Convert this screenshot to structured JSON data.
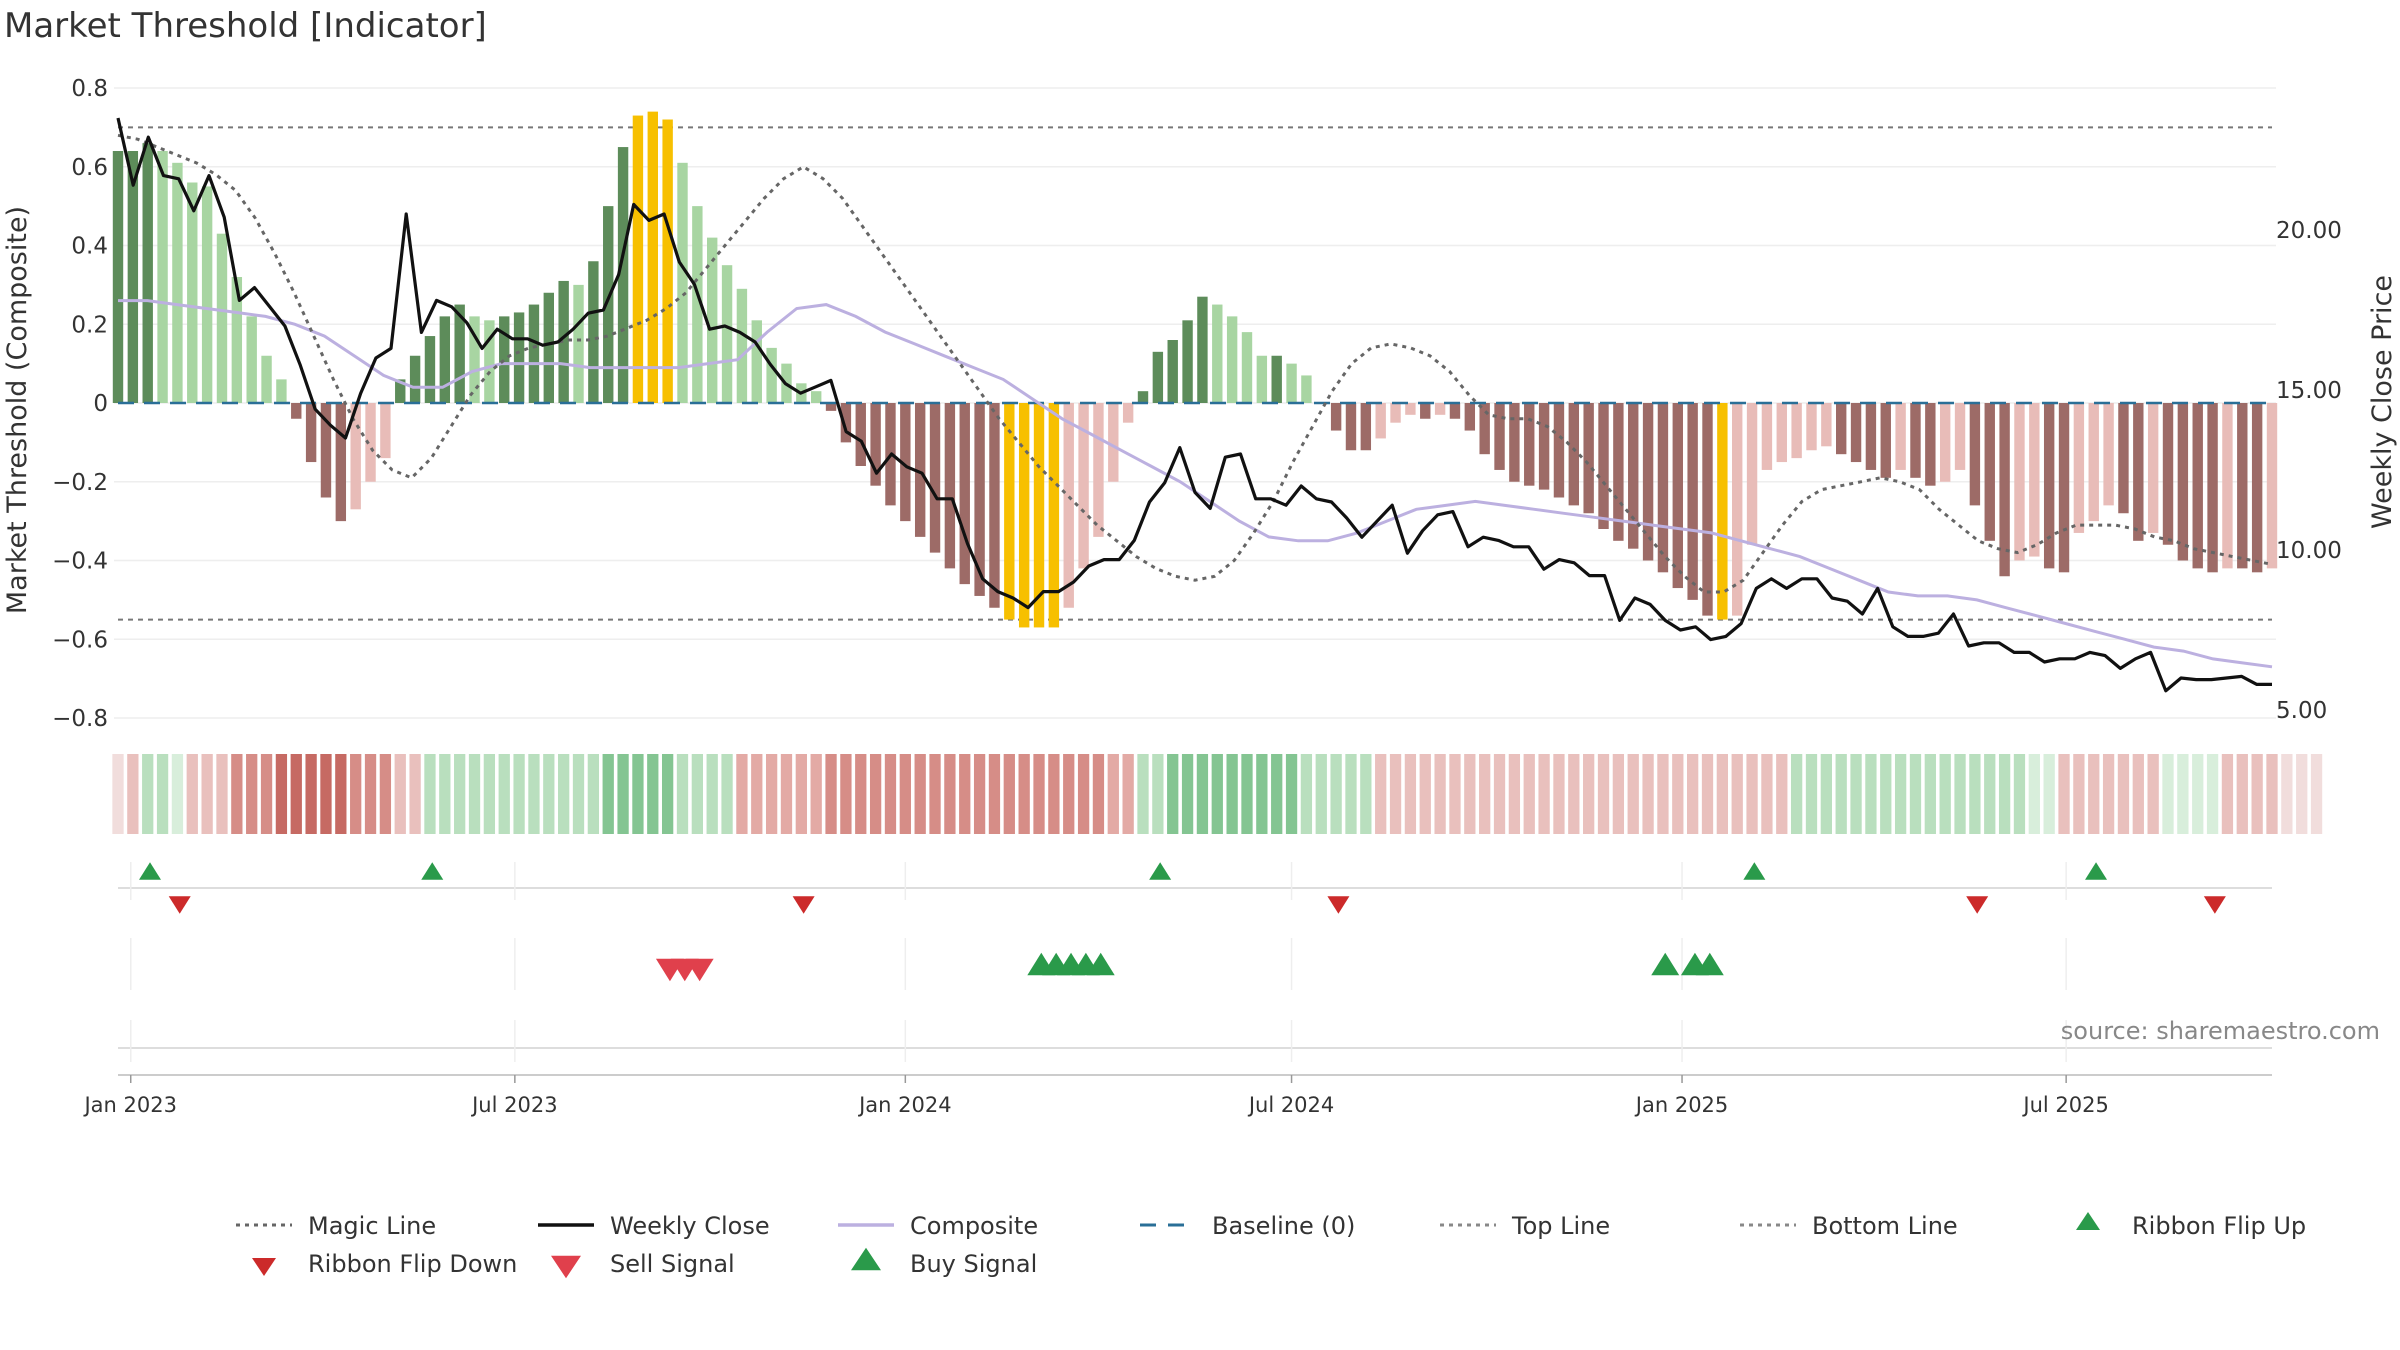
{
  "chart_data": {
    "type": "bar",
    "title": "Market Threshold [Indicator]",
    "ylabel_left": "Market Threshold (Composite)",
    "ylabel_right": "Weekly Close Price",
    "source": "source: sharemaestro.com",
    "x_start": "2022-12-26",
    "x_end": "2025-10-06",
    "x_ticks": [
      {
        "date": "2023-01-01",
        "label": "Jan 2023"
      },
      {
        "date": "2023-07-01",
        "label": "Jul 2023"
      },
      {
        "date": "2024-01-01",
        "label": "Jan 2024"
      },
      {
        "date": "2024-07-01",
        "label": "Jul 2024"
      },
      {
        "date": "2025-01-01",
        "label": "Jan 2025"
      },
      {
        "date": "2025-07-01",
        "label": "Jul 2025"
      }
    ],
    "ylim_left": [
      -0.8,
      0.8
    ],
    "yticks_left": [
      {
        "value": 0.8,
        "label": "0.8"
      },
      {
        "value": 0.6,
        "label": "0.6"
      },
      {
        "value": 0.4,
        "label": "0.4"
      },
      {
        "value": 0.2,
        "label": "0.2"
      },
      {
        "value": 0,
        "label": "0"
      },
      {
        "value": -0.2,
        "label": "−0.2"
      },
      {
        "value": -0.4,
        "label": "−0.4"
      },
      {
        "value": -0.6,
        "label": "−0.6"
      },
      {
        "value": -0.8,
        "label": "−0.8"
      }
    ],
    "ylim_right": [
      5.0,
      20.0
    ],
    "yticks_right": [
      {
        "value": 20.0,
        "label": "20.00"
      },
      {
        "value": 15.0,
        "label": "15.00"
      },
      {
        "value": 10.0,
        "label": "10.00"
      },
      {
        "value": 5.0,
        "label": "5.00"
      }
    ],
    "top_line": 0.7,
    "bottom_line": -0.55,
    "composite_bars": [
      0.64,
      0.64,
      0.66,
      0.64,
      0.61,
      0.56,
      0.55,
      0.43,
      0.32,
      0.22,
      0.12,
      0.06,
      -0.04,
      -0.15,
      -0.24,
      -0.3,
      -0.27,
      -0.2,
      -0.14,
      0.06,
      0.12,
      0.17,
      0.22,
      0.25,
      0.22,
      0.21,
      0.22,
      0.23,
      0.25,
      0.28,
      0.31,
      0.3,
      0.36,
      0.5,
      0.65,
      0.73,
      0.74,
      0.72,
      0.61,
      0.5,
      0.42,
      0.35,
      0.29,
      0.21,
      0.14,
      0.1,
      0.05,
      0.03,
      -0.02,
      -0.1,
      -0.16,
      -0.21,
      -0.26,
      -0.3,
      -0.34,
      -0.38,
      -0.42,
      -0.46,
      -0.49,
      -0.52,
      -0.55,
      -0.57,
      -0.57,
      -0.57,
      -0.52,
      -0.42,
      -0.34,
      -0.2,
      -0.05,
      0.03,
      0.13,
      0.16,
      0.21,
      0.27,
      0.25,
      0.22,
      0.18,
      0.12,
      0.12,
      0.1,
      0.07,
      0,
      -0.07,
      -0.12,
      -0.12,
      -0.09,
      -0.05,
      -0.03,
      -0.04,
      -0.03,
      -0.04,
      -0.07,
      -0.13,
      -0.17,
      -0.2,
      -0.21,
      -0.22,
      -0.24,
      -0.26,
      -0.28,
      -0.32,
      -0.35,
      -0.37,
      -0.4,
      -0.43,
      -0.47,
      -0.5,
      -0.54,
      -0.55,
      -0.54,
      -0.36,
      -0.17,
      -0.15,
      -0.14,
      -0.12,
      -0.11,
      -0.13,
      -0.15,
      -0.17,
      -0.19,
      -0.17,
      -0.19,
      -0.21,
      -0.2,
      -0.17,
      -0.26,
      -0.35,
      -0.44,
      -0.4,
      -0.39,
      -0.42,
      -0.43,
      -0.33,
      -0.3,
      -0.26,
      -0.28,
      -0.35,
      -0.33,
      -0.36,
      -0.4,
      -0.42,
      -0.43,
      -0.42,
      -0.42,
      -0.43,
      -0.42
    ],
    "weekly_close": [
      23.5,
      21.4,
      22.9,
      21.7,
      21.6,
      20.6,
      21.7,
      20.4,
      17.8,
      18.2,
      17.6,
      17.0,
      15.8,
      14.4,
      13.9,
      13.5,
      14.9,
      16.0,
      16.3,
      20.5,
      16.8,
      17.8,
      17.6,
      17.1,
      16.3,
      16.9,
      16.6,
      16.6,
      16.4,
      16.5,
      16.9,
      17.4,
      17.5,
      18.6,
      20.8,
      20.3,
      20.5,
      19.0,
      18.3,
      16.9,
      17.0,
      16.8,
      16.5,
      15.8,
      15.2,
      14.9,
      15.1,
      15.3,
      13.7,
      13.4,
      12.4,
      13.0,
      12.6,
      12.4,
      11.6,
      11.6,
      10.2,
      9.1,
      8.7,
      8.5,
      8.2,
      8.7,
      8.7,
      9.0,
      9.5,
      9.7,
      9.7,
      10.3,
      11.5,
      12.1,
      13.2,
      11.8,
      11.3,
      12.9,
      13.0,
      11.6,
      11.6,
      11.4,
      12.0,
      11.6,
      11.5,
      11.0,
      10.4,
      10.9,
      11.4,
      9.9,
      10.6,
      11.1,
      11.2,
      10.1,
      10.4,
      10.3,
      10.1,
      10.1,
      9.4,
      9.7,
      9.6,
      9.2,
      9.2,
      7.8,
      8.5,
      8.3,
      7.8,
      7.5,
      7.6,
      7.2,
      7.3,
      7.7,
      8.8,
      9.1,
      8.8,
      9.1,
      9.1,
      8.5,
      8.4,
      8.0,
      8.8,
      7.6,
      7.3,
      7.3,
      7.4,
      8.0,
      7.0,
      7.1,
      7.1,
      6.8,
      6.8,
      6.5,
      6.6,
      6.6,
      6.8,
      6.7,
      6.3,
      6.6,
      6.8,
      5.6,
      6.0,
      5.95,
      5.95,
      6.0,
      6.05,
      5.8,
      5.8
    ],
    "magic_line": [
      0.68,
      0.67,
      0.65,
      0.63,
      0.61,
      0.58,
      0.54,
      0.47,
      0.38,
      0.28,
      0.17,
      0.06,
      -0.04,
      -0.12,
      -0.17,
      -0.19,
      -0.14,
      -0.06,
      0.02,
      0.08,
      0.12,
      0.14,
      0.15,
      0.16,
      0.16,
      0.17,
      0.19,
      0.21,
      0.24,
      0.28,
      0.34,
      0.4,
      0.46,
      0.52,
      0.57,
      0.6,
      0.57,
      0.52,
      0.45,
      0.38,
      0.31,
      0.24,
      0.17,
      0.1,
      0.03,
      -0.04,
      -0.1,
      -0.16,
      -0.21,
      -0.26,
      -0.31,
      -0.35,
      -0.39,
      -0.42,
      -0.44,
      -0.45,
      -0.44,
      -0.4,
      -0.33,
      -0.25,
      -0.15,
      -0.06,
      0.03,
      0.1,
      0.14,
      0.15,
      0.14,
      0.12,
      0.08,
      0.02,
      -0.03,
      -0.04,
      -0.04,
      -0.06,
      -0.1,
      -0.15,
      -0.21,
      -0.27,
      -0.33,
      -0.39,
      -0.44,
      -0.48,
      -0.48,
      -0.45,
      -0.38,
      -0.31,
      -0.25,
      -0.22,
      -0.21,
      -0.2,
      -0.19,
      -0.2,
      -0.22,
      -0.27,
      -0.31,
      -0.35,
      -0.37,
      -0.38,
      -0.36,
      -0.33,
      -0.31,
      -0.31,
      -0.31,
      -0.32,
      -0.34,
      -0.35,
      -0.37,
      -0.38,
      -0.39,
      -0.4,
      -0.41
    ],
    "composite_line": [
      0.26,
      0.26,
      0.25,
      0.24,
      0.23,
      0.22,
      0.2,
      0.17,
      0.12,
      0.07,
      0.04,
      0.04,
      0.08,
      0.1,
      0.1,
      0.1,
      0.09,
      0.09,
      0.09,
      0.09,
      0.1,
      0.11,
      0.18,
      0.24,
      0.25,
      0.22,
      0.18,
      0.15,
      0.12,
      0.09,
      0.06,
      0.01,
      -0.04,
      -0.08,
      -0.12,
      -0.16,
      -0.2,
      -0.25,
      -0.3,
      -0.34,
      -0.35,
      -0.35,
      -0.33,
      -0.3,
      -0.27,
      -0.26,
      -0.25,
      -0.26,
      -0.27,
      -0.28,
      -0.29,
      -0.3,
      -0.31,
      -0.32,
      -0.33,
      -0.35,
      -0.37,
      -0.39,
      -0.42,
      -0.45,
      -0.48,
      -0.49,
      -0.49,
      -0.5,
      -0.52,
      -0.54,
      -0.56,
      -0.58,
      -0.6,
      -0.62,
      -0.63,
      -0.65,
      -0.66,
      -0.67
    ],
    "baseline": 0,
    "ribbon": [
      {
        "color": "#f1dddc",
        "weeks": 1
      },
      {
        "color": "#e9c0bd",
        "weeks": 1
      },
      {
        "color": "#b9dfbe",
        "weeks": 2
      },
      {
        "color": "#d8eedb",
        "weeks": 1
      },
      {
        "color": "#e9c0bd",
        "weeks": 3
      },
      {
        "color": "#d68d87",
        "weeks": 3
      },
      {
        "color": "#c66a63",
        "weeks": 5
      },
      {
        "color": "#d68d87",
        "weeks": 3
      },
      {
        "color": "#e9c0bd",
        "weeks": 2
      },
      {
        "color": "#b9dfbe",
        "weeks": 12
      },
      {
        "color": "#84c592",
        "weeks": 5
      },
      {
        "color": "#b9dfbe",
        "weeks": 4
      },
      {
        "color": "#e3aaa5",
        "weeks": 6
      },
      {
        "color": "#d68d87",
        "weeks": 19
      },
      {
        "color": "#e3aaa5",
        "weeks": 2
      },
      {
        "color": "#b9dfbe",
        "weeks": 2
      },
      {
        "color": "#84c592",
        "weeks": 9
      },
      {
        "color": "#b9dfbe",
        "weeks": 5
      },
      {
        "color": "#e9c0bd",
        "weeks": 28
      },
      {
        "color": "#b9dfbe",
        "weeks": 16
      },
      {
        "color": "#d8eedb",
        "weeks": 2
      },
      {
        "color": "#e9c0bd",
        "weeks": 7
      },
      {
        "color": "#d8eedb",
        "weeks": 4
      },
      {
        "color": "#e9c0bd",
        "weeks": 4
      },
      {
        "color": "#f1dddc",
        "weeks": 3
      }
    ],
    "ribbon_flip_up": [
      "2022-12-26",
      "2023-05-08",
      "2024-04-15",
      "2025-01-20",
      "2025-06-30"
    ],
    "ribbon_flip_down": [
      "2023-01-09",
      "2023-10-30",
      "2024-07-08",
      "2025-05-05",
      "2025-08-25"
    ],
    "sell_signal": [
      "2023-08-28",
      "2023-09-04",
      "2023-09-11"
    ],
    "buy_signal": [
      "2024-02-19",
      "2024-02-26",
      "2024-03-04",
      "2024-03-11",
      "2024-03-18",
      "2024-12-09",
      "2024-12-23",
      "2024-12-30"
    ],
    "colors": {
      "bar_pos_light": "#a8d5a2",
      "bar_pos_dark": "#5d8c5a",
      "bar_neg_light": "#e8bcb8",
      "bar_neg_dark": "#9d6b67",
      "bar_extreme": "#f7c000",
      "weekly_close": "#111111",
      "composite": "#bcb0e0",
      "baseline": "#2a6f97",
      "magic_line": "#666666",
      "threshold_lines": "#777777",
      "flip_up": "#2a9a4a",
      "flip_down": "#cc2a2a",
      "sell": "#e0404c",
      "buy": "#2a9a4a"
    },
    "legend": [
      {
        "label": "Magic Line",
        "style": "dotted-line",
        "color": "#666666"
      },
      {
        "label": "Weekly Close",
        "style": "solid-line",
        "color": "#111111"
      },
      {
        "label": "Composite",
        "style": "solid-line",
        "color": "#bcb0e0"
      },
      {
        "label": "Baseline (0)",
        "style": "dashed-line",
        "color": "#2a6f97"
      },
      {
        "label": "Top Line",
        "style": "dotted-line",
        "color": "#888888"
      },
      {
        "label": "Bottom Line",
        "style": "dotted-line",
        "color": "#888888"
      },
      {
        "label": "Ribbon Flip Up",
        "style": "triangle-up",
        "color": "#2a9a4a"
      },
      {
        "label": "Ribbon Flip Down",
        "style": "triangle-down",
        "color": "#cc2a2a"
      },
      {
        "label": "Sell Signal",
        "style": "triangle-down-large",
        "color": "#e0404c"
      },
      {
        "label": "Buy Signal",
        "style": "triangle-up-large",
        "color": "#2a9a4a"
      }
    ]
  }
}
